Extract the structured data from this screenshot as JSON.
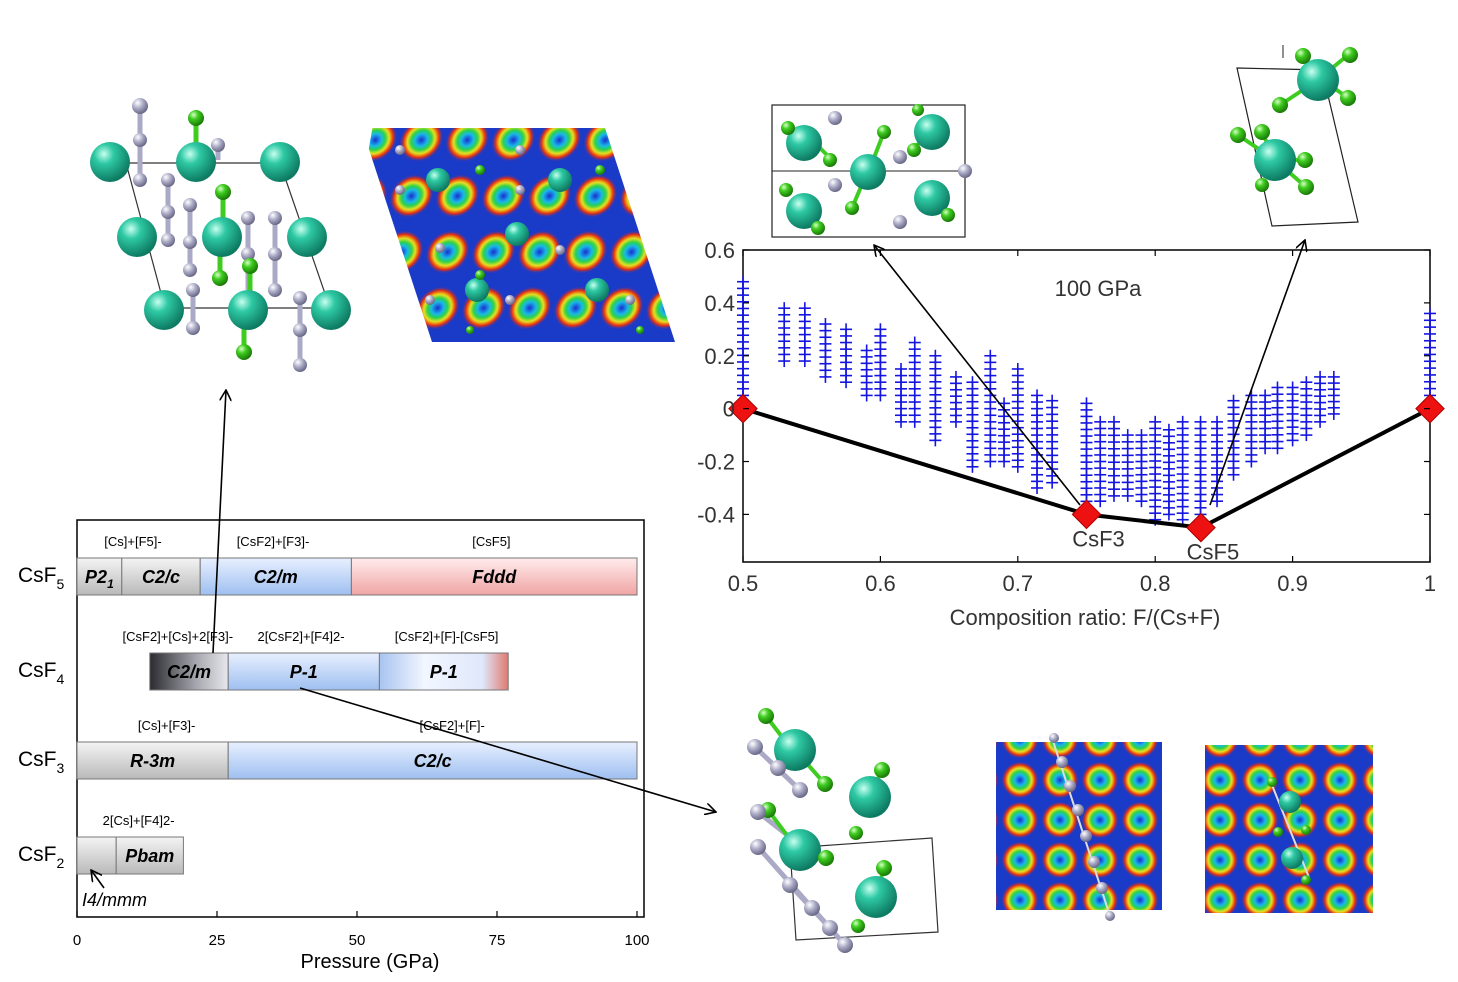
{
  "phase_diagram": {
    "compounds": [
      {
        "name": "CsF",
        "sub": "5"
      },
      {
        "name": "CsF",
        "sub": "4"
      },
      {
        "name": "CsF",
        "sub": "3"
      },
      {
        "name": "CsF",
        "sub": "2"
      }
    ],
    "bars": [
      {
        "row": 0,
        "label": "P2",
        "sub": "1",
        "start": 0,
        "end": 8,
        "style": "gray"
      },
      {
        "row": 0,
        "label": "C2/c",
        "start": 8,
        "end": 22,
        "style": "gray"
      },
      {
        "row": 0,
        "label": "C2/m",
        "start": 22,
        "end": 49,
        "style": "blue"
      },
      {
        "row": 0,
        "label": "Fddd",
        "start": 49,
        "end": 100,
        "style": "red"
      },
      {
        "row": 1,
        "label": "C2/m",
        "start": 13,
        "end": 27,
        "style": "dark"
      },
      {
        "row": 1,
        "label": "P-1",
        "start": 27,
        "end": 54,
        "style": "blue"
      },
      {
        "row": 1,
        "label": "P-1",
        "start": 54,
        "end": 77,
        "style": "bluered"
      },
      {
        "row": 2,
        "label": "R-3m",
        "start": 0,
        "end": 27,
        "style": "gray"
      },
      {
        "row": 2,
        "label": "C2/c",
        "start": 27,
        "end": 100,
        "style": "blue"
      },
      {
        "row": 3,
        "label": "",
        "start": 0,
        "end": 7,
        "style": "gray"
      },
      {
        "row": 3,
        "label": "Pbam",
        "start": 7,
        "end": 19,
        "style": "gray"
      }
    ],
    "ion_labels": [
      {
        "row": 0,
        "text": "[Cs]+[F5]-",
        "at": 10
      },
      {
        "row": 0,
        "text": "[CsF2]+[F3]-",
        "at": 35
      },
      {
        "row": 0,
        "text": "[CsF5]",
        "at": 74
      },
      {
        "row": 1,
        "text": "[CsF2]+[Cs]+2[F3]-",
        "at": 18
      },
      {
        "row": 1,
        "text": "2[CsF2]+[F4]2-",
        "at": 40
      },
      {
        "row": 1,
        "text": "[CsF2]+[F]-[CsF5]",
        "at": 66
      },
      {
        "row": 2,
        "text": "[Cs]+[F3]-",
        "at": 16
      },
      {
        "row": 2,
        "text": "[CsF2]+[F]-",
        "at": 67
      },
      {
        "row": 3,
        "text": "2[Cs]+[F4]2-",
        "at": 11
      }
    ],
    "i4mmm_label": "I4/mmm",
    "x_ticks": [
      "0",
      "25",
      "50",
      "75",
      "100"
    ],
    "x_label": "Pressure (GPa)"
  },
  "chart_data": {
    "type": "scatter",
    "annotation": "100 GPa",
    "xlabel": "Composition ratio: F/(Cs+F)",
    "ylabel": "",
    "xlim": [
      0.5,
      1.0
    ],
    "ylim": [
      -0.58,
      0.6
    ],
    "x_ticks": [
      "0.5",
      "0.6",
      "0.7",
      "0.8",
      "0.9",
      "1"
    ],
    "y_ticks": [
      "0.6",
      "0.4",
      "0.2",
      "0",
      "-0.2",
      "-0.4"
    ],
    "series": [
      {
        "type": "hull",
        "x": [
          0.5,
          0.75,
          0.8333,
          1.0
        ],
        "y": [
          0.0,
          -0.4,
          -0.45,
          0.0
        ],
        "labels": [
          "",
          "CsF3",
          "CsF5",
          ""
        ]
      },
      {
        "type": "candidates",
        "columns": [
          {
            "x": 0.5,
            "ymin": 0.05,
            "ymax": 0.48
          },
          {
            "x": 0.53,
            "ymin": 0.18,
            "ymax": 0.38
          },
          {
            "x": 0.545,
            "ymin": 0.18,
            "ymax": 0.38
          },
          {
            "x": 0.56,
            "ymin": 0.12,
            "ymax": 0.32
          },
          {
            "x": 0.575,
            "ymin": 0.1,
            "ymax": 0.3
          },
          {
            "x": 0.59,
            "ymin": 0.05,
            "ymax": 0.22
          },
          {
            "x": 0.6,
            "ymin": 0.05,
            "ymax": 0.3
          },
          {
            "x": 0.615,
            "ymin": -0.05,
            "ymax": 0.15
          },
          {
            "x": 0.625,
            "ymin": -0.05,
            "ymax": 0.25
          },
          {
            "x": 0.64,
            "ymin": -0.12,
            "ymax": 0.2
          },
          {
            "x": 0.655,
            "ymin": -0.05,
            "ymax": 0.12
          },
          {
            "x": 0.667,
            "ymin": -0.22,
            "ymax": 0.1
          },
          {
            "x": 0.68,
            "ymin": -0.2,
            "ymax": 0.2
          },
          {
            "x": 0.69,
            "ymin": -0.2,
            "ymax": 0.02
          },
          {
            "x": 0.7,
            "ymin": -0.22,
            "ymax": 0.15
          },
          {
            "x": 0.714,
            "ymin": -0.3,
            "ymax": 0.05
          },
          {
            "x": 0.725,
            "ymin": -0.28,
            "ymax": 0.03
          },
          {
            "x": 0.75,
            "ymin": -0.4,
            "ymax": 0.02
          },
          {
            "x": 0.76,
            "ymin": -0.35,
            "ymax": -0.05
          },
          {
            "x": 0.77,
            "ymin": -0.33,
            "ymax": -0.05
          },
          {
            "x": 0.78,
            "ymin": -0.33,
            "ymax": -0.1
          },
          {
            "x": 0.79,
            "ymin": -0.35,
            "ymax": -0.1
          },
          {
            "x": 0.8,
            "ymin": -0.42,
            "ymax": -0.05
          },
          {
            "x": 0.81,
            "ymin": -0.4,
            "ymax": -0.08
          },
          {
            "x": 0.82,
            "ymin": -0.42,
            "ymax": -0.05
          },
          {
            "x": 0.833,
            "ymin": -0.45,
            "ymax": -0.05
          },
          {
            "x": 0.845,
            "ymin": -0.35,
            "ymax": -0.05
          },
          {
            "x": 0.857,
            "ymin": -0.25,
            "ymax": 0.03
          },
          {
            "x": 0.87,
            "ymin": -0.2,
            "ymax": 0.05
          },
          {
            "x": 0.88,
            "ymin": -0.15,
            "ymax": 0.05
          },
          {
            "x": 0.889,
            "ymin": -0.15,
            "ymax": 0.08
          },
          {
            "x": 0.9,
            "ymin": -0.12,
            "ymax": 0.08
          },
          {
            "x": 0.91,
            "ymin": -0.1,
            "ymax": 0.1
          },
          {
            "x": 0.92,
            "ymin": -0.05,
            "ymax": 0.12
          },
          {
            "x": 0.93,
            "ymin": -0.02,
            "ymax": 0.12
          },
          {
            "x": 1.0,
            "ymin": 0.05,
            "ymax": 0.36
          }
        ]
      }
    ]
  },
  "colors": {
    "candidate": "#1515e0",
    "hull_marker": "#ee1111",
    "cs_atom": "#2ec9a4",
    "f_atom": "#3fcc20",
    "f_light": "#aaaac6"
  }
}
